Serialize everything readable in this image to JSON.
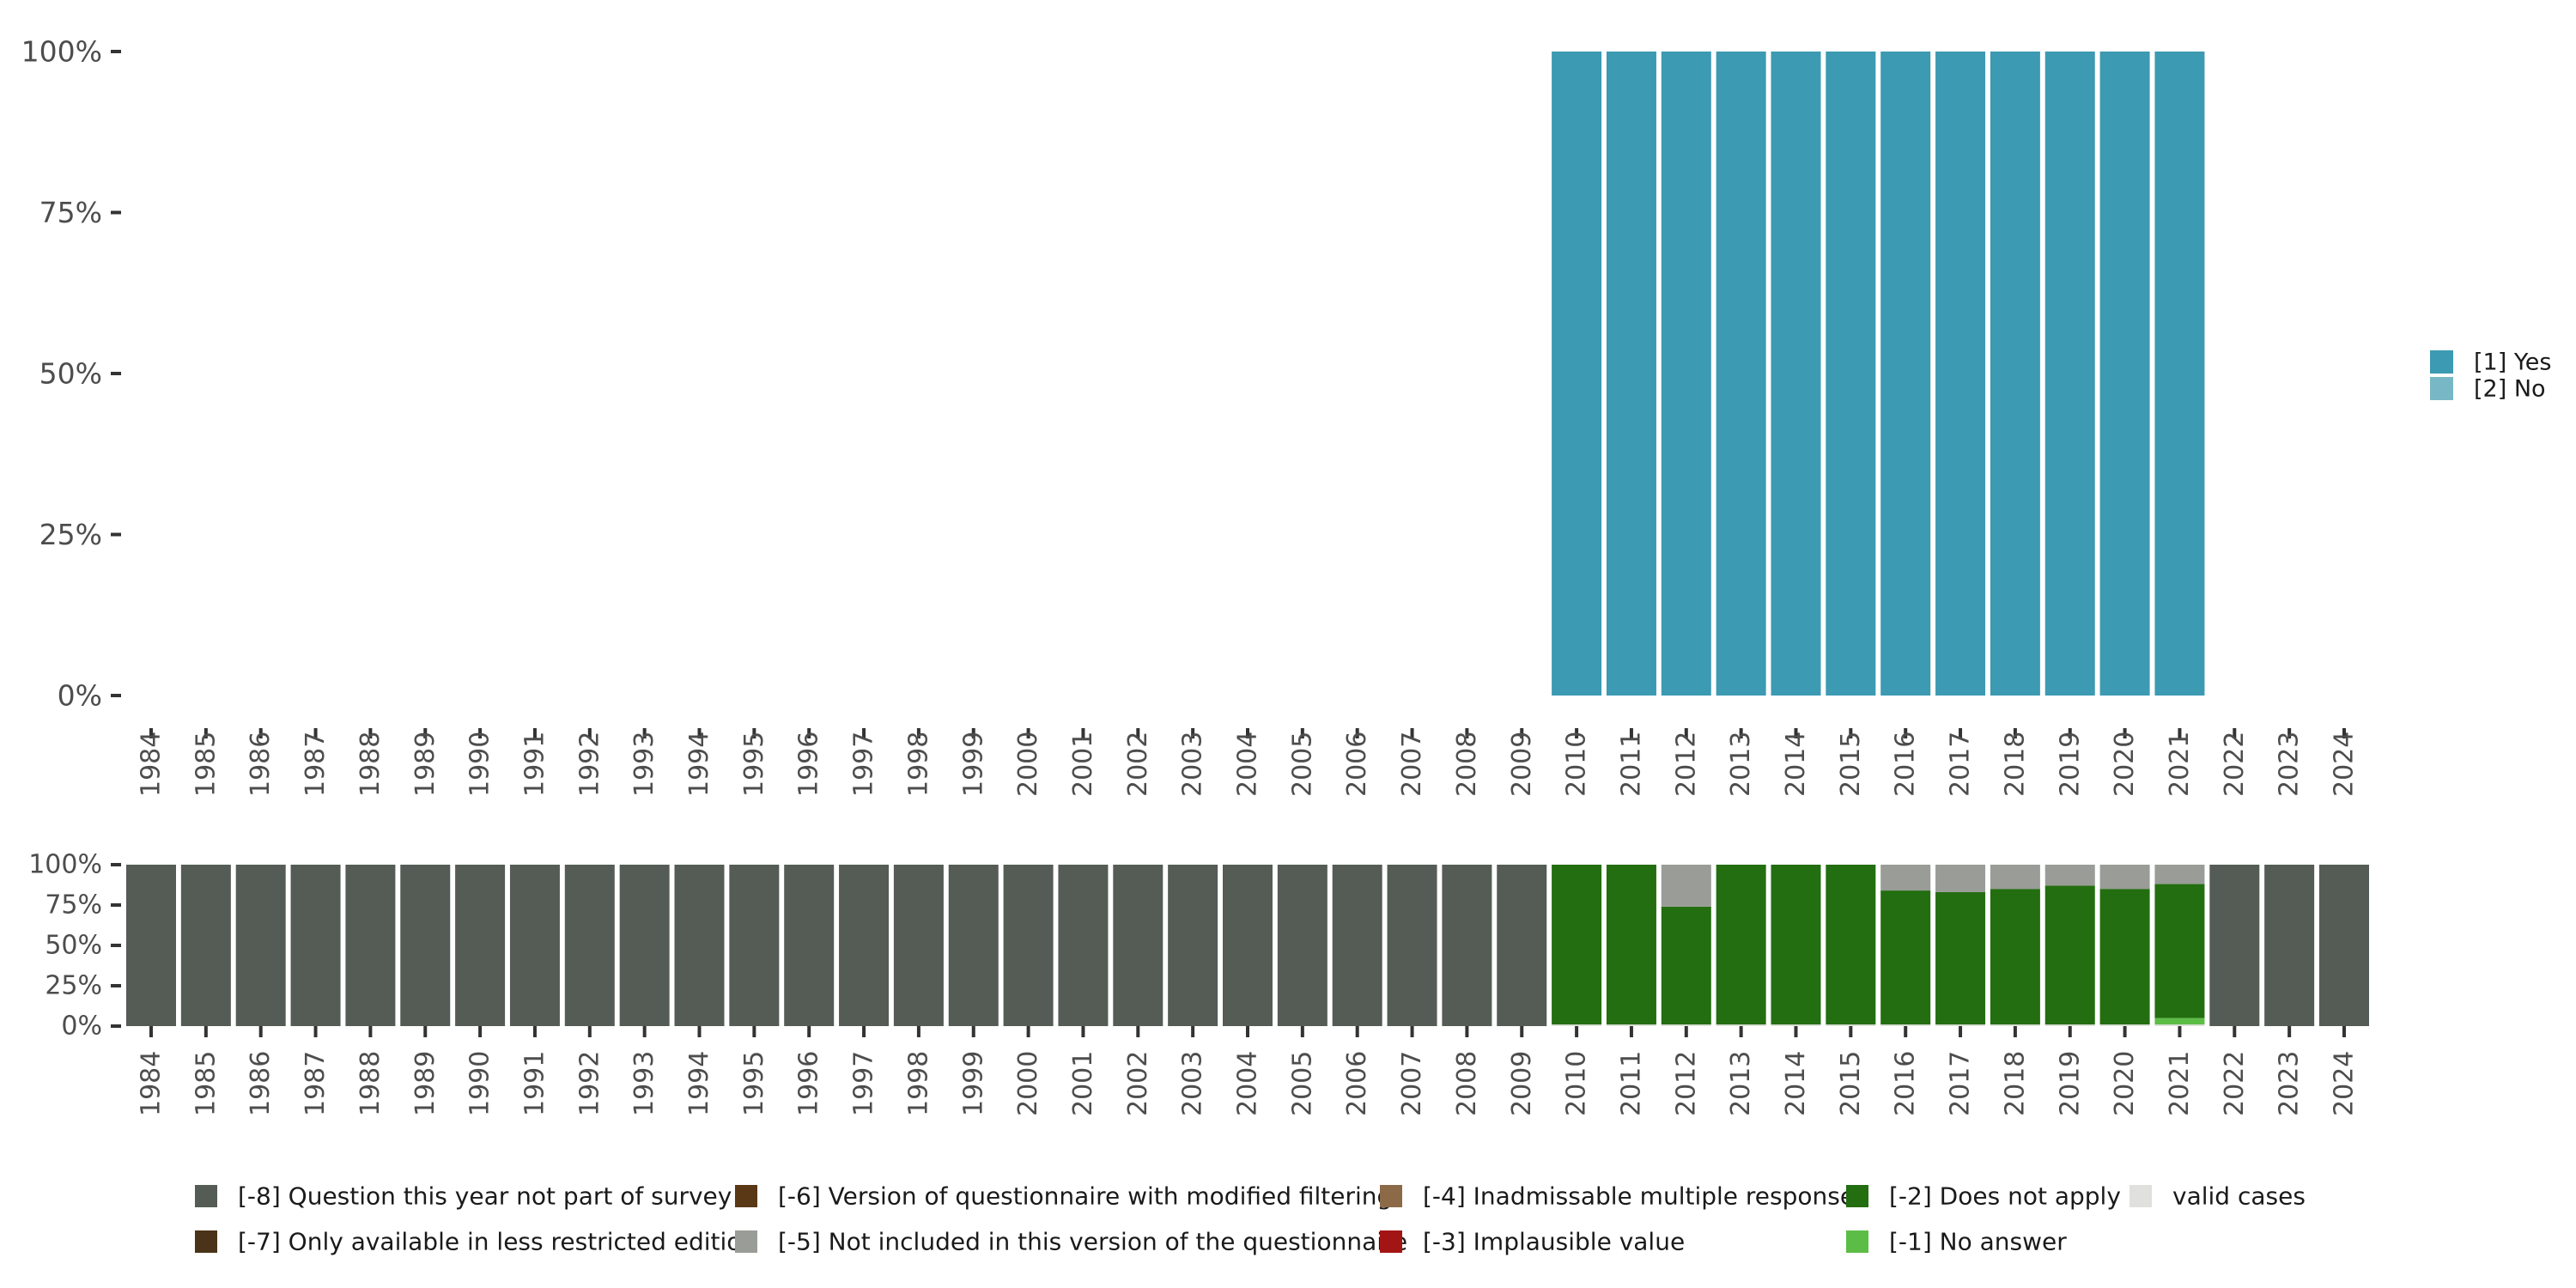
{
  "chart_data": [
    {
      "type": "bar",
      "stacked": true,
      "panel": "valid responses",
      "categories": [
        "1984",
        "1985",
        "1986",
        "1987",
        "1988",
        "1989",
        "1990",
        "1991",
        "1992",
        "1993",
        "1994",
        "1995",
        "1996",
        "1997",
        "1998",
        "1999",
        "2000",
        "2001",
        "2002",
        "2003",
        "2004",
        "2005",
        "2006",
        "2007",
        "2008",
        "2009",
        "2010",
        "2011",
        "2012",
        "2013",
        "2014",
        "2015",
        "2016",
        "2017",
        "2018",
        "2019",
        "2020",
        "2021",
        "2022",
        "2023",
        "2024"
      ],
      "ylim": [
        0,
        100
      ],
      "y_ticks": [
        "0%",
        "25%",
        "50%",
        "75%",
        "100%"
      ],
      "legend_position": "right",
      "series": [
        {
          "name": "[1] Yes",
          "color": "#3c9ab2",
          "values": [
            0,
            0,
            0,
            0,
            0,
            0,
            0,
            0,
            0,
            0,
            0,
            0,
            0,
            0,
            0,
            0,
            0,
            0,
            0,
            0,
            0,
            0,
            0,
            0,
            0,
            0,
            100,
            100,
            100,
            100,
            100,
            100,
            100,
            100,
            100,
            100,
            100,
            100,
            0,
            0,
            0
          ]
        },
        {
          "name": "[2] No",
          "color": "#78b7c5",
          "values": [
            0,
            0,
            0,
            0,
            0,
            0,
            0,
            0,
            0,
            0,
            0,
            0,
            0,
            0,
            0,
            0,
            0,
            0,
            0,
            0,
            0,
            0,
            0,
            0,
            0,
            0,
            0,
            0,
            0,
            0,
            0,
            0,
            0,
            0,
            0,
            0,
            0,
            0,
            0,
            0,
            0
          ]
        }
      ]
    },
    {
      "type": "bar",
      "stacked": true,
      "panel": "missing codes",
      "categories": [
        "1984",
        "1985",
        "1986",
        "1987",
        "1988",
        "1989",
        "1990",
        "1991",
        "1992",
        "1993",
        "1994",
        "1995",
        "1996",
        "1997",
        "1998",
        "1999",
        "2000",
        "2001",
        "2002",
        "2003",
        "2004",
        "2005",
        "2006",
        "2007",
        "2008",
        "2009",
        "2010",
        "2011",
        "2012",
        "2013",
        "2014",
        "2015",
        "2016",
        "2017",
        "2018",
        "2019",
        "2020",
        "2021",
        "2022",
        "2023",
        "2024"
      ],
      "ylim": [
        0,
        100
      ],
      "y_ticks": [
        "0%",
        "25%",
        "50%",
        "75%",
        "100%"
      ],
      "legend_position": "bottom",
      "series": [
        {
          "name": "valid cases",
          "color": "#e0e1df",
          "values": [
            0,
            0,
            0,
            0,
            0,
            0,
            0,
            0,
            0,
            0,
            0,
            0,
            0,
            0,
            0,
            0,
            0,
            0,
            0,
            0,
            0,
            0,
            0,
            0,
            0,
            0,
            1,
            1,
            1,
            1,
            1,
            1,
            1,
            1,
            1,
            1,
            1,
            1,
            0,
            0,
            0
          ]
        },
        {
          "name": "[-1] No answer",
          "color": "#5cbd46",
          "values": [
            0,
            0,
            0,
            0,
            0,
            0,
            0,
            0,
            0,
            0,
            0,
            0,
            0,
            0,
            0,
            0,
            0,
            0,
            0,
            0,
            0,
            0,
            0,
            0,
            0,
            0,
            0,
            0,
            0,
            0,
            0,
            0,
            0,
            0,
            0,
            0,
            0,
            4,
            0,
            0,
            0
          ]
        },
        {
          "name": "[-2] Does not apply",
          "color": "#236e10",
          "values": [
            0,
            0,
            0,
            0,
            0,
            0,
            0,
            0,
            0,
            0,
            0,
            0,
            0,
            0,
            0,
            0,
            0,
            0,
            0,
            0,
            0,
            0,
            0,
            0,
            0,
            0,
            99,
            99,
            73,
            99,
            99,
            99,
            83,
            82,
            84,
            86,
            84,
            83,
            0,
            0,
            0
          ]
        },
        {
          "name": "[-3] Implausible value",
          "color": "#a31515",
          "values": [
            0,
            0,
            0,
            0,
            0,
            0,
            0,
            0,
            0,
            0,
            0,
            0,
            0,
            0,
            0,
            0,
            0,
            0,
            0,
            0,
            0,
            0,
            0,
            0,
            0,
            0,
            0,
            0,
            0,
            0,
            0,
            0,
            0,
            0,
            0,
            0,
            0,
            0,
            0,
            0,
            0
          ]
        },
        {
          "name": "[-4] Inadmissable multiple response",
          "color": "#8c6a48",
          "values": [
            0,
            0,
            0,
            0,
            0,
            0,
            0,
            0,
            0,
            0,
            0,
            0,
            0,
            0,
            0,
            0,
            0,
            0,
            0,
            0,
            0,
            0,
            0,
            0,
            0,
            0,
            0,
            0,
            0,
            0,
            0,
            0,
            0,
            0,
            0,
            0,
            0,
            0,
            0,
            0,
            0
          ]
        },
        {
          "name": "[-5] Not included in this version of the questionnaire",
          "color": "#9a9c97",
          "values": [
            0,
            0,
            0,
            0,
            0,
            0,
            0,
            0,
            0,
            0,
            0,
            0,
            0,
            0,
            0,
            0,
            0,
            0,
            0,
            0,
            0,
            0,
            0,
            0,
            0,
            0,
            0,
            0,
            26,
            0,
            0,
            0,
            16,
            17,
            15,
            13,
            15,
            12,
            0,
            0,
            0
          ]
        },
        {
          "name": "[-6] Version of questionnaire with modified filtering",
          "color": "#5a3715",
          "values": [
            0,
            0,
            0,
            0,
            0,
            0,
            0,
            0,
            0,
            0,
            0,
            0,
            0,
            0,
            0,
            0,
            0,
            0,
            0,
            0,
            0,
            0,
            0,
            0,
            0,
            0,
            0,
            0,
            0,
            0,
            0,
            0,
            0,
            0,
            0,
            0,
            0,
            0,
            0,
            0,
            0
          ]
        },
        {
          "name": "[-7] Only available in less restricted edition",
          "color": "#4a3318",
          "values": [
            0,
            0,
            0,
            0,
            0,
            0,
            0,
            0,
            0,
            0,
            0,
            0,
            0,
            0,
            0,
            0,
            0,
            0,
            0,
            0,
            0,
            0,
            0,
            0,
            0,
            0,
            0,
            0,
            0,
            0,
            0,
            0,
            0,
            0,
            0,
            0,
            0,
            0,
            0,
            0,
            0
          ]
        },
        {
          "name": "[-8] Question this year not part of survey",
          "color": "#555b55",
          "values": [
            100,
            100,
            100,
            100,
            100,
            100,
            100,
            100,
            100,
            100,
            100,
            100,
            100,
            100,
            100,
            100,
            100,
            100,
            100,
            100,
            100,
            100,
            100,
            100,
            100,
            100,
            0,
            0,
            0,
            0,
            0,
            0,
            0,
            0,
            0,
            0,
            0,
            0,
            100,
            100,
            100
          ]
        }
      ],
      "legend_order": [
        "[-8] Question this year not part of survey",
        "[-7] Only available in less restricted edition",
        "[-6] Version of questionnaire with modified filtering",
        "[-5] Not included in this version of the questionnaire",
        "[-4] Inadmissable multiple response",
        "[-3] Implausible value",
        "[-2] Does not apply",
        "[-1] No answer",
        "valid cases"
      ]
    }
  ]
}
